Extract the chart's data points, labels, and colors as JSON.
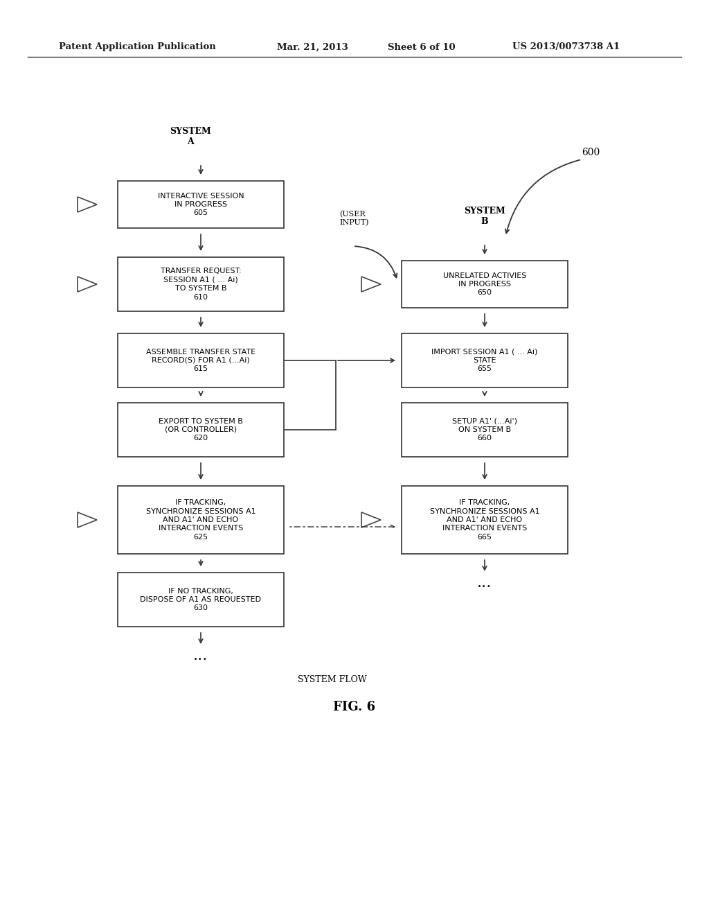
{
  "bg_color": "#ffffff",
  "header_line1": "Patent Application Publication",
  "header_line2": "Mar. 21, 2013",
  "header_line3": "Sheet 6 of 10",
  "header_line4": "US 2013/0073738 A1",
  "fig_label": "FIG. 6",
  "fig_sublabel": "SYSTEM FLOW",
  "label_600": "600",
  "system_a_label": "SYSTEM\nA",
  "system_b_label": "SYSTEM\nB",
  "user_input_label": "(USER\nINPUT)",
  "b605_text": "INTERACTIVE SESSION\nIN PROGRESS\n605",
  "b610_text": "TRANSFER REQUEST:\nSESSION A1 ( ... Ai)\nTO SYSTEM B\n610",
  "b615_text": "ASSEMBLE TRANSFER STATE\nRECORD(S) FOR A1 (...Ai)\n615",
  "b620_text": "EXPORT TO SYSTEM B\n(OR CONTROLLER)\n620",
  "b625_text": "IF TRACKING,\nSYNCHRONIZE SESSIONS A1\nAND A1' AND ECHO\nINTERACTION EVENTS\n625",
  "b630_text": "IF NO TRACKING,\nDISPOSE OF A1 AS REQUESTED\n630",
  "b650_text": "UNRELATED ACTIVIES\nIN PROGRESS\n650",
  "b655_text": "IMPORT SESSION A1 ( ... Ai)\nSTATE\n655",
  "b660_text": "SETUP A1' (...Ai')\nON SYSTEM B\n660",
  "b665_text": "IF TRACKING,\nSYNCHRONIZE SESSIONS A1\nAND A1' AND ECHO\nINTERACTION EVENTS\n665"
}
